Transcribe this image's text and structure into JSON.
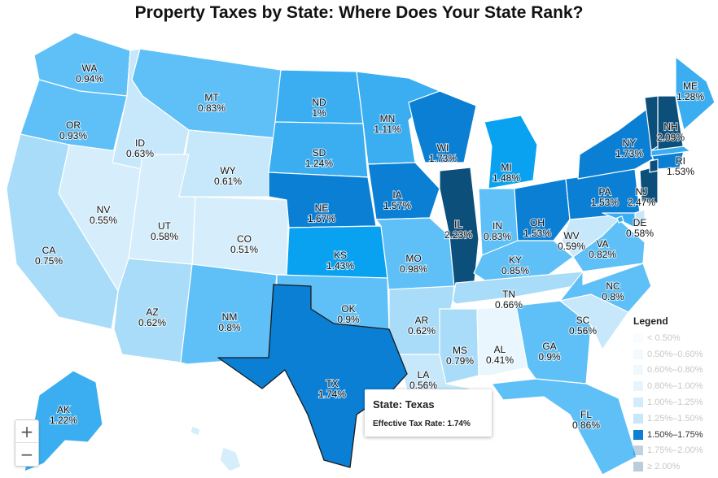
{
  "title": "Property Taxes by State: Where Does Your State Rank?",
  "states": {
    "WA": {
      "abbr": "WA",
      "rate": "0.94%",
      "color": "#5ec0f7"
    },
    "OR": {
      "abbr": "OR",
      "rate": "0.93%",
      "color": "#5ec0f7"
    },
    "CA": {
      "abbr": "CA",
      "rate": "0.75%",
      "color": "#a8dcf8"
    },
    "NV": {
      "abbr": "NV",
      "rate": "0.55%",
      "color": "#d6eefb"
    },
    "ID": {
      "abbr": "ID",
      "rate": "0.63%",
      "color": "#c6e8fa"
    },
    "MT": {
      "abbr": "MT",
      "rate": "0.83%",
      "color": "#5ec0f7"
    },
    "WY": {
      "abbr": "WY",
      "rate": "0.61%",
      "color": "#c6e8fa"
    },
    "UT": {
      "abbr": "UT",
      "rate": "0.58%",
      "color": "#d6eefb"
    },
    "CO": {
      "abbr": "CO",
      "rate": "0.51%",
      "color": "#d6eefb"
    },
    "AZ": {
      "abbr": "AZ",
      "rate": "0.62%",
      "color": "#a8dcf8"
    },
    "NM": {
      "abbr": "NM",
      "rate": "0.8%",
      "color": "#5ec0f7"
    },
    "ND": {
      "abbr": "ND",
      "rate": "1%",
      "color": "#3aaef0"
    },
    "SD": {
      "abbr": "SD",
      "rate": "1.24%",
      "color": "#3aaef0"
    },
    "NE": {
      "abbr": "NE",
      "rate": "1.67%",
      "color": "#0b7fd4"
    },
    "KS": {
      "abbr": "KS",
      "rate": "1.43%",
      "color": "#08a2f0"
    },
    "OK": {
      "abbr": "OK",
      "rate": "0.9%",
      "color": "#5ec0f7"
    },
    "TX": {
      "abbr": "TX",
      "rate": "1.74%",
      "color": "#0b7fd4"
    },
    "MN": {
      "abbr": "MN",
      "rate": "1.11%",
      "color": "#3aaef0"
    },
    "IA": {
      "abbr": "IA",
      "rate": "1.57%",
      "color": "#0b7fd4"
    },
    "MO": {
      "abbr": "MO",
      "rate": "0.98%",
      "color": "#5ec0f7"
    },
    "AR": {
      "abbr": "AR",
      "rate": "0.62%",
      "color": "#a8dcf8"
    },
    "LA": {
      "abbr": "LA",
      "rate": "0.56%",
      "color": "#c6e8fa"
    },
    "WI": {
      "abbr": "WI",
      "rate": "1.73%",
      "color": "#0b7fd4"
    },
    "IL": {
      "abbr": "IL",
      "rate": "2.23%",
      "color": "#0b4f7a"
    },
    "MI": {
      "abbr": "MI",
      "rate": "1.48%",
      "color": "#08a2f0"
    },
    "IN": {
      "abbr": "IN",
      "rate": "0.83%",
      "color": "#5ec0f7"
    },
    "OH": {
      "abbr": "OH",
      "rate": "1.53%",
      "color": "#0b7fd4"
    },
    "KY": {
      "abbr": "KY",
      "rate": "0.85%",
      "color": "#5ec0f7"
    },
    "TN": {
      "abbr": "TN",
      "rate": "0.66%",
      "color": "#a8dcf8"
    },
    "MS": {
      "abbr": "MS",
      "rate": "0.79%",
      "color": "#a8dcf8"
    },
    "AL": {
      "abbr": "AL",
      "rate": "0.41%",
      "color": "#e9f6fd"
    },
    "GA": {
      "abbr": "GA",
      "rate": "0.9%",
      "color": "#5ec0f7"
    },
    "FL": {
      "abbr": "FL",
      "rate": "0.86%",
      "color": "#5ec0f7"
    },
    "SC": {
      "abbr": "SC",
      "rate": "0.56%",
      "color": "#c6e8fa"
    },
    "NC": {
      "abbr": "NC",
      "rate": "0.8%",
      "color": "#5ec0f7"
    },
    "VA": {
      "abbr": "VA",
      "rate": "0.82%",
      "color": "#5ec0f7"
    },
    "WV": {
      "abbr": "WV",
      "rate": "0.59%",
      "color": "#c6e8fa"
    },
    "PA": {
      "abbr": "PA",
      "rate": "1.53%",
      "color": "#0b7fd4"
    },
    "NY": {
      "abbr": "NY",
      "rate": "1.73%",
      "color": "#0b7fd4"
    },
    "NJ": {
      "abbr": "NJ",
      "rate": "2.47%",
      "color": "#0b4f7a"
    },
    "DE": {
      "abbr": "DE",
      "rate": "0.58%",
      "color": "#c6e8fa"
    },
    "RI": {
      "abbr": "RI",
      "rate": "1.53%",
      "color": "#0b7fd4"
    },
    "NH": {
      "abbr": "NH",
      "rate": "2.09%",
      "color": "#0b4f7a"
    },
    "ME": {
      "abbr": "ME",
      "rate": "1.28%",
      "color": "#3aaef0"
    },
    "AK": {
      "abbr": "AK",
      "rate": "1.22%",
      "color": "#3aaef0"
    }
  },
  "tooltip": {
    "state_line": "State: Texas",
    "rate_line": "Effective Tax Rate: 1.74%"
  },
  "legend": {
    "title": "Legend",
    "items": [
      {
        "label": "< 0.50%",
        "color": "#e9f6fd",
        "active": false
      },
      {
        "label": "0.50%–0.60%",
        "color": "#d6eefb",
        "active": false
      },
      {
        "label": "0.60%–0.80%",
        "color": "#c6e8fa",
        "active": false
      },
      {
        "label": "0.80%–1.00%",
        "color": "#a8dcf8",
        "active": false
      },
      {
        "label": "1.00%–1.25%",
        "color": "#5ec0f7",
        "active": false
      },
      {
        "label": "1.25%–1.50%",
        "color": "#3aaef0",
        "active": false
      },
      {
        "label": "1.50%–1.75%",
        "color": "#0b7fd4",
        "active": true
      },
      {
        "label": "1.75%–2.00%",
        "color": "#1b5f9a",
        "active": false
      },
      {
        "label": "≥ 2.00%",
        "color": "#0b4f7a",
        "active": false
      }
    ]
  },
  "zoom": {
    "in_label": "+",
    "out_label": "−"
  }
}
